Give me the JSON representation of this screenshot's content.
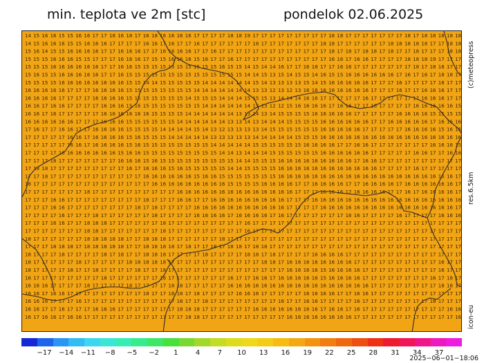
{
  "header": {
    "title": "min. teplota ve 2m [stc]",
    "date": "pondelok 02.06.2025"
  },
  "side_labels": {
    "credit": "(c)meteopress",
    "resolution": "res.6.5km",
    "model": "icon-eu"
  },
  "map": {
    "fill_color": "#f1a414",
    "value_color": "#3a2200",
    "border_color": "#2a2a2a",
    "grid_rows": [
      "14 15 16 16 15 15 16 16 17 17 18 16 18 17 16 18 16 16 16 16 17 17 17 17 18 18 19 17 17 17 17 17 17 17 17 17 18 18 17 17 17 17 17 17 17 18 17 18 18 18 18 18",
      "14 15 16 16 16 15 15 16 16 16 17 17 17 17 16 16 17 16 17 17 16 17 17 17 17 17 17 18 17 17 17 17 17 17 17 18 18 17 17 17 17 17 17 18 18 18 18 18 17 17 18 18",
      "15 16 14 15 15 16 16 16 16 17 17 16 16 16 17 17 16 16 16 16 17 17 16 17 17 17 17 17 17 17 17 17 17 17 17 17 18 17 18 17 18 18 17 18 17 17 18 17 17 17 18 18",
      "15 15 15 16 16 16 15 15 17 17 17 16 16 16 17 15 15 16 16 16 15 16 17 17 16 17 17 17 17 17 17 17 17 17 17 17 16 16 17 16 16 17 17 17 17 18 18 18 19 17 17 17",
      "15 15 15 16 16 16 16 16 16 17 17 16 16 15 15 15 15 15 15 15 15 15 15 16 15 15 14 15 14 14 16 17 17 16 18 17 17 16 16 17 17 17 17 17 17 17 18 17 18 18 17 17",
      "15 16 15 15 16 16 16 16 16 17 17 16 15 15 15 15 15 15 15 15 15 15 15 15 15 15 14 14 15 13 15 14 15 15 14 16 15 15 16 16 16 16 16 16 17 16 17 16 17 18 18 17",
      "15 15 15 15 16 16 16 16 16 16 16 16 15 15 14 14 15 15 15 15 15 14 14 14 14 14 14 15 14 13 13 13 13 15 14 15 16 16 16 16 16 17 17 17 16 17 17 17 17 18 17 17",
      "16 16 16 16 16 17 17 17 16 16 16 16 15 15 15 15 15 15 15 15 14 14 14 14 14 14 14 13 13 12 13 12 13 16 16 16 16 16 16 16 16 17 17 17 16 17 17 16 16 16 17 17",
      "16 16 16 16 17 17 17 17 16 16 16 16 15 15 15 15 15 15 15 14 15 15 15 14 14 14 15 15 15 13 14 14 14 16 16 17 17 17 17 17 16 17 17 17 17 17 17 16 16 16 17 17",
      "16 16 17 16 16 17 17 17 17 16 16 16 15 16 15 15 15 15 15 15 15 14 14 14 14 14 14 13 13 12 12 15 16 16 16 16 17 16 16 17 17 16 17 17 17 17 16 16 16 16 16 15",
      "16 16 17 16 17 17 17 17 17 16 16 16 16 16 16 15 15 15 15 14 14 14 14 14 14 13 13 14 13 14 15 15 15 15 16 16 16 16 16 17 17 17 17 17 16 16 16 16 15 15 15 15",
      "16 16 16 16 16 16 17 17 17 16 16 16 15 15 15 15 15 15 14 14 14 14 14 14 13 13 14 13 14 14 14 15 15 15 15 16 16 16 16 16 16 17 17 16 16 16 16 16 17 16 16 16",
      "17 16 17 17 16 16 17 17 16 16 16 16 15 15 15 15 14 14 14 14 15 14 13 12 13 13 13 13 14 15 15 15 15 15 15 16 16 16 16 16 17 17 17 17 17 16 16 16 16 15 16 16",
      "17 17 17 17 17 16 16 17 16 16 16 16 15 16 15 15 15 14 14 14 14 14 13 13 13 13 13 14 14 14 14 14 15 15 15 16 16 16 16 16 16 16 16 16 16 16 16 16 16 16 16 16",
      "17 17 17 17 17 16 16 17 16 16 16 16 15 16 15 15 15 15 15 15 15 15 14 14 14 14 14 15 15 15 15 15 15 16 16 16 16 17 17 16 16 17 17 17 17 17 17 17 16 16 16 15",
      "17 17 17 17 16 16 16 16 16 16 16 15 16 16 15 15 15 15 15 15 15 15 15 14 14 13 14 14 14 15 15 15 15 15 15 16 16 16 16 16 16 17 17 17 17 17 16 16 17 17 16 16",
      "17 17 17 18 17 17 17 17 17 17 17 16 16 16 15 16 15 15 15 15 15 15 15 15 15 14 14 15 15 15 16 16 16 16 16 16 16 16 16 17 16 16 17 17 17 17 17 17 17 17 17 17",
      "17 18 18 17 17 17 17 17 17 17 17 17 16 17 16 16 16 15 16 15 15 15 15 15 14 14 15 15 15 15 16 16 16 16 16 16 16 16 16 16 16 16 17 17 17 17 16 17 17 17 17 17",
      "17 17 18 17 17 17 17 17 17 17 17 17 17 17 16 16 16 16 16 16 15 16 16 15 15 15 15 15 15 15 16 16 16 16 16 16 16 16 16 16 16 16 16 16 16 16 16 16 16 16 16 17",
      "18 17 17 17 17 17 17 17 17 17 17 17 17 17 17 16 16 16 16 16 16 16 16 16 15 15 15 15 16 16 16 16 17 17 16 16 16 16 17 17 16 16 16 16 17 16 16 16 16 16 16 17",
      "17 17 17 17 17 17 17 18 17 17 17 17 17 17 17 17 17 17 16 16 16 16 16 16 16 16 16 16 16 16 16 16 17 17 17 16 16 16 17 16 16 16 16 17 17 16 17 16 16 16 16 17",
      "17 17 17 16 16 17 17 17 17 17 17 17 17 17 18 17 17 17 16 16 17 17 16 16 16 16 16 16 16 16 16 17 17 17 16 16 16 16 16 16 16 16 16 16 16 16 16 16 16 16 16 16",
      "17 17 17 16 16 17 17 17 17 17 17 17 17 18 17 18 17 17 17 17 16 16 16 16 16 16 16 16 16 16 16 17 17 17 17 16 16 16 16 16 16 16 16 16 16 16 16 16 16 16 16 17",
      "17 17 17 17 16 17 17 17 18 17 17 17 17 17 17 18 17 17 17 17 16 16 16 16 17 16 16 16 16 17 16 17 17 17 17 17 17 17 16 16 17 17 17 17 16 17 17 17 17 16 16 16",
      "17 17 17 16 16 17 17 18 18 18 17 17 17 17 17 17 18 17 17 17 17 17 17 17 17 17 16 17 17 17 17 17 17 17 17 17 17 17 17 17 17 17 17 17 17 17 17 17 17 17 17 17",
      "17 17 17 17 17 17 17 18 18 17 17 17 17 17 17 17 18 17 17 17 17 17 17 17 17 17 16 17 17 17 17 17 17 17 17 17 17 17 17 17 17 17 17 17 17 17 17 17 17 17 17 17",
      "18 17 17 17 17 17 17 18 18 18 18 18 17 17 18 18 18 17 17 17 17 17 17 18 17 17 17 17 17 17 17 17 17 17 17 17 17 17 17 17 17 17 17 17 17 17 17 17 17 17 17 17",
      "17 17 17 18 18 18 17 18 18 18 18 18 17 17 18 18 18 18 17 18 17 17 18 17 18 18 17 18 18 17 17 17 17 17 17 17 17 17 17 17 17 17 17 17 17 17 17 17 17 17 17 17",
      "18 17 17 17 18 17 17 17 17 18 17 18 17 17 18 18 18 17 17 17 17 18 17 17 17 17 18 18 17 18 17 17 17 17 16 16 16 16 17 17 17 17 17 17 17 17 17 17 17 17 17 17",
      "18 17 17 17 17 17 18 17 17 17 17 17 18 18 18 18 18 17 17 17 17 17 17 17 17 17 17 17 18 18 17 16 16 16 16 16 16 16 16 17 17 17 17 17 17 17 17 17 17 16 17 17",
      "18 17 17 17 17 18 17 17 18 17 17 17 17 18 17 17 18 17 17 17 17 17 17 17 17 17 17 17 17 17 17 16 16 16 16 15 16 16 16 16 17 17 17 17 17 17 17 17 17 16 17 17",
      "16 17 17 17 17 17 17 17 17 18 17 17 17 17 17 17 18 17 17 17 17 17 17 17 16 17 17 16 16 17 16 16 16 16 16 15 16 16 16 16 17 17 17 17 17 17 17 17 16 17 18 17",
      "16 16 16 17 17 17 17 18 17 17 17 17 18 17 17 17 17 18 18 17 17 17 17 17 16 16 16 16 16 16 16 16 16 16 16 16 16 16 16 16 16 17 17 17 17 17 17 17 17 18 18 17",
      "16 16 17 16 16 17 17 17 17 17 17 17 17 17 18 17 17 18 18 17 18 17 17 17 17 16 16 16 17 17 17 17 17 16 16 16 16 17 17 16 16 17 17 17 17 17 17 17 17 17 17 17",
      "16 16 16 17 17 17 16 17 17 17 17 17 17 17 17 17 17 17 18 17 17 18 17 17 17 17 17 17 17 17 16 17 17 16 16 17 17 17 17 16 17 17 17 17 17 17 17 17 18 17 17 17",
      "16 16 17 17 16 17 17 17 16 16 16 17 17 17 17 17 17 17 18 18 18 17 17 17 17 17 17 16 16 16 16 16 16 16 16 17 16 16 17 16 17 17 17 17 17 17 17 17 17 17 16 16",
      "16 17 16 16 17 16 16 17 17 17 17 17 17 17 17 17 17 17 17 18 18 17 17 17 17 17 17 17 17 17 17 16 16 16 16 16 16 16 16 17 17 17 17 17 17 17 17 17 17 17 17 16"
    ],
    "cell_width": 12.2,
    "cell_height": 11.3
  },
  "colorbar": {
    "colors": [
      "#1428d8",
      "#1e64ec",
      "#2896f4",
      "#32bcf4",
      "#3cd6ee",
      "#3ce6d6",
      "#36eeb4",
      "#36ec8c",
      "#3ee866",
      "#48e03c",
      "#7ad832",
      "#a2d82a",
      "#c4dc22",
      "#dcdc1c",
      "#eed818",
      "#f4cc14",
      "#f6bc12",
      "#f4a812",
      "#f29412",
      "#f27e10",
      "#f0680e",
      "#ee4e10",
      "#ee3016",
      "#f01a2e",
      "#f21656",
      "#f0168a",
      "#ee18be",
      "#ee1ce0"
    ],
    "ticks": [
      "−17",
      "−14",
      "−11",
      "−8",
      "−5",
      "−2",
      "1",
      "4",
      "7",
      "10",
      "13",
      "16",
      "19",
      "22",
      "25",
      "28",
      "31",
      "34",
      "37"
    ]
  },
  "run_stamp": "2025−06−01−18:06"
}
